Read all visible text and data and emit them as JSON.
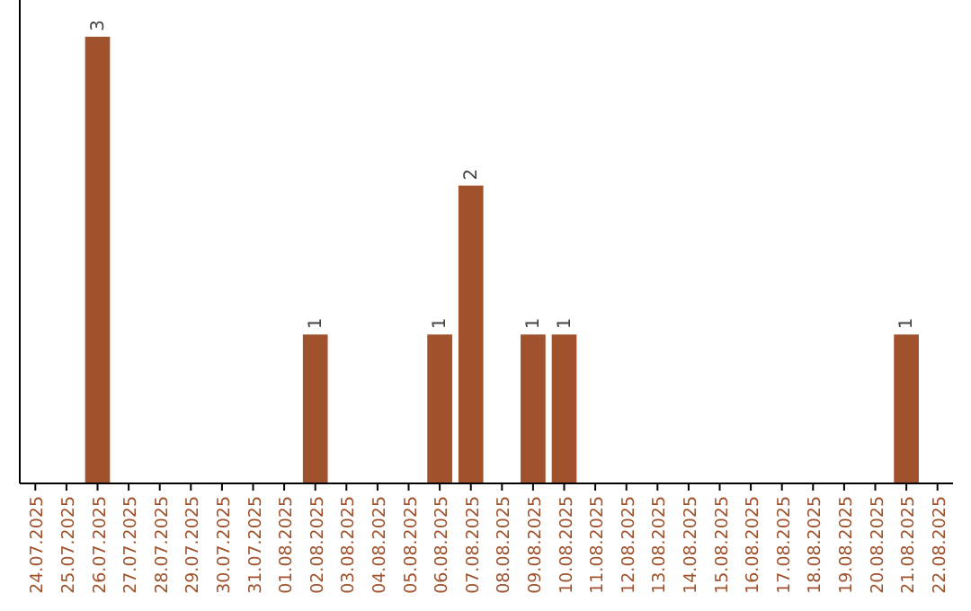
{
  "chart_data": {
    "type": "bar",
    "categories": [
      "24.07.2025",
      "25.07.2025",
      "26.07.2025",
      "27.07.2025",
      "28.07.2025",
      "29.07.2025",
      "30.07.2025",
      "31.07.2025",
      "01.08.2025",
      "02.08.2025",
      "03.08.2025",
      "04.08.2025",
      "05.08.2025",
      "06.08.2025",
      "07.08.2025",
      "08.08.2025",
      "09.08.2025",
      "10.08.2025",
      "11.08.2025",
      "12.08.2025",
      "13.08.2025",
      "14.08.2025",
      "15.08.2025",
      "16.08.2025",
      "17.08.2025",
      "18.08.2025",
      "19.08.2025",
      "20.08.2025",
      "21.08.2025",
      "22.08.2025"
    ],
    "values": [
      0,
      0,
      3,
      0,
      0,
      0,
      0,
      0,
      0,
      1,
      0,
      0,
      0,
      1,
      2,
      0,
      1,
      1,
      0,
      0,
      0,
      0,
      0,
      0,
      0,
      0,
      0,
      0,
      1,
      0
    ],
    "value_labels": [
      null,
      null,
      "3",
      null,
      null,
      null,
      null,
      null,
      null,
      "1",
      null,
      null,
      null,
      "1",
      "2",
      null,
      "1",
      "1",
      null,
      null,
      null,
      null,
      null,
      null,
      null,
      null,
      null,
      null,
      "1",
      null
    ],
    "color": "#a0522d"
  }
}
